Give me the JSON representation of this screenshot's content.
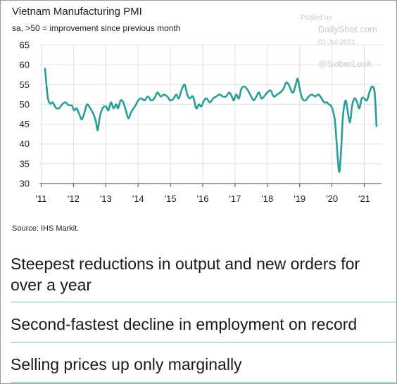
{
  "chart_data": {
    "type": "line",
    "title": "Vietnam Manufacturing PMI",
    "subtitle": "sa, >50 = improvement since previous month",
    "xlabel": "",
    "ylabel": "",
    "ylim": [
      30,
      65
    ],
    "yticks": [
      "30",
      "35",
      "40",
      "45",
      "50",
      "55",
      "60",
      "65"
    ],
    "xticks": [
      "'11",
      "'12",
      "'13",
      "'14",
      "'15",
      "'16",
      "'17",
      "'18",
      "'19",
      "'20",
      "'21"
    ],
    "xlim": [
      2011.0,
      2021.6
    ],
    "grid": true,
    "line_color": "#2a9d9b",
    "series": [
      {
        "name": "",
        "points": [
          [
            2011.12,
            59.0
          ],
          [
            2011.2,
            52.0
          ],
          [
            2011.28,
            50.2
          ],
          [
            2011.36,
            50.5
          ],
          [
            2011.45,
            49.2
          ],
          [
            2011.55,
            49.0
          ],
          [
            2011.65,
            50.0
          ],
          [
            2011.75,
            50.5
          ],
          [
            2011.85,
            49.8
          ],
          [
            2011.95,
            49.7
          ],
          [
            2012.02,
            48.5
          ],
          [
            2012.1,
            49.0
          ],
          [
            2012.18,
            47.5
          ],
          [
            2012.26,
            46.2
          ],
          [
            2012.34,
            48.0
          ],
          [
            2012.42,
            50.0
          ],
          [
            2012.52,
            49.0
          ],
          [
            2012.62,
            47.5
          ],
          [
            2012.7,
            45.5
          ],
          [
            2012.75,
            43.5
          ],
          [
            2012.82,
            47.0
          ],
          [
            2012.9,
            49.0
          ],
          [
            2013.0,
            49.5
          ],
          [
            2013.08,
            48.5
          ],
          [
            2013.16,
            50.5
          ],
          [
            2013.24,
            49.0
          ],
          [
            2013.32,
            50.0
          ],
          [
            2013.38,
            49.0
          ],
          [
            2013.46,
            51.0
          ],
          [
            2013.54,
            50.5
          ],
          [
            2013.62,
            48.5
          ],
          [
            2013.7,
            46.5
          ],
          [
            2013.78,
            48.0
          ],
          [
            2013.86,
            49.0
          ],
          [
            2013.94,
            50.0
          ],
          [
            2014.0,
            51.0
          ],
          [
            2014.1,
            51.5
          ],
          [
            2014.2,
            51.0
          ],
          [
            2014.3,
            52.0
          ],
          [
            2014.4,
            51.0
          ],
          [
            2014.5,
            51.5
          ],
          [
            2014.6,
            53.0
          ],
          [
            2014.7,
            52.0
          ],
          [
            2014.8,
            52.5
          ],
          [
            2014.9,
            52.0
          ],
          [
            2015.0,
            51.0
          ],
          [
            2015.1,
            51.5
          ],
          [
            2015.18,
            52.5
          ],
          [
            2015.26,
            51.5
          ],
          [
            2015.34,
            53.5
          ],
          [
            2015.44,
            55.0
          ],
          [
            2015.52,
            52.5
          ],
          [
            2015.6,
            51.5
          ],
          [
            2015.7,
            52.0
          ],
          [
            2015.8,
            49.0
          ],
          [
            2015.88,
            50.0
          ],
          [
            2015.96,
            49.5
          ],
          [
            2016.04,
            51.0
          ],
          [
            2016.12,
            51.5
          ],
          [
            2016.22,
            50.5
          ],
          [
            2016.32,
            51.5
          ],
          [
            2016.42,
            52.0
          ],
          [
            2016.52,
            52.5
          ],
          [
            2016.62,
            52.0
          ],
          [
            2016.72,
            52.0
          ],
          [
            2016.82,
            53.0
          ],
          [
            2016.9,
            52.0
          ],
          [
            2016.96,
            51.0
          ],
          [
            2017.04,
            52.5
          ],
          [
            2017.12,
            51.5
          ],
          [
            2017.2,
            54.0
          ],
          [
            2017.3,
            54.5
          ],
          [
            2017.4,
            53.5
          ],
          [
            2017.5,
            52.0
          ],
          [
            2017.58,
            51.0
          ],
          [
            2017.66,
            52.0
          ],
          [
            2017.74,
            53.0
          ],
          [
            2017.82,
            51.5
          ],
          [
            2017.9,
            52.0
          ],
          [
            2018.0,
            53.0
          ],
          [
            2018.1,
            53.5
          ],
          [
            2018.2,
            52.0
          ],
          [
            2018.3,
            52.5
          ],
          [
            2018.4,
            53.0
          ],
          [
            2018.5,
            54.0
          ],
          [
            2018.58,
            55.5
          ],
          [
            2018.66,
            55.0
          ],
          [
            2018.74,
            53.5
          ],
          [
            2018.8,
            53.0
          ],
          [
            2018.88,
            55.0
          ],
          [
            2018.94,
            56.5
          ],
          [
            2019.0,
            54.0
          ],
          [
            2019.08,
            51.5
          ],
          [
            2019.18,
            51.0
          ],
          [
            2019.28,
            52.0
          ],
          [
            2019.38,
            52.5
          ],
          [
            2019.48,
            52.0
          ],
          [
            2019.58,
            52.5
          ],
          [
            2019.68,
            51.5
          ],
          [
            2019.76,
            50.5
          ],
          [
            2019.84,
            50.5
          ],
          [
            2019.9,
            50.0
          ],
          [
            2019.98,
            49.5
          ],
          [
            2020.08,
            46.5
          ],
          [
            2020.14,
            41.0
          ],
          [
            2020.22,
            33.0
          ],
          [
            2020.28,
            38.0
          ],
          [
            2020.34,
            47.0
          ],
          [
            2020.42,
            51.0
          ],
          [
            2020.5,
            47.5
          ],
          [
            2020.56,
            45.5
          ],
          [
            2020.62,
            49.5
          ],
          [
            2020.7,
            51.5
          ],
          [
            2020.78,
            50.5
          ],
          [
            2020.85,
            49.0
          ],
          [
            2020.92,
            51.5
          ],
          [
            2021.0,
            51.5
          ],
          [
            2021.08,
            51.0
          ],
          [
            2021.16,
            53.0
          ],
          [
            2021.24,
            54.5
          ],
          [
            2021.32,
            53.0
          ],
          [
            2021.38,
            44.5
          ]
        ]
      }
    ],
    "source": "Source: IHS Markit."
  },
  "watermark": {
    "posted": "Posted on",
    "site": "DailyShot.com",
    "date": "01-Jul-2021",
    "handle": "@SoberLook"
  },
  "highlights": [
    "Steepest reductions in output and new orders for over a year",
    "Second-fastest decline in employment on record",
    "Selling prices up only marginally"
  ],
  "colors": {
    "line": "#2a9d9b",
    "rule": "#7cc9b2",
    "grid": "#e0e0e0"
  }
}
